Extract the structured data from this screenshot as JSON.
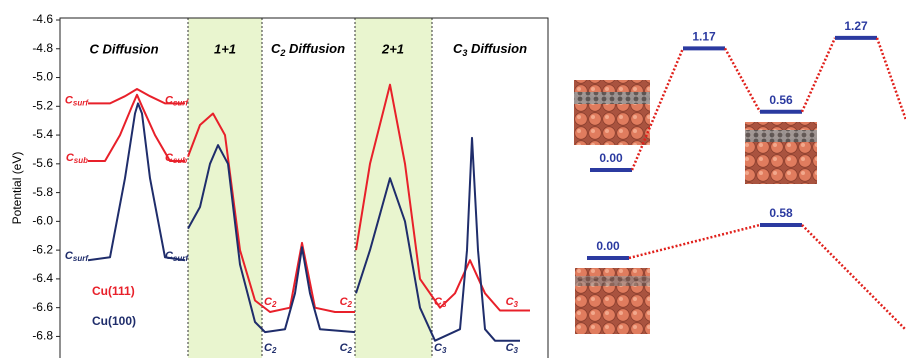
{
  "chart_data": [
    {
      "type": "line",
      "y_label": "Potential (eV)",
      "ylim": [
        -6.95,
        -4.6
      ],
      "yticks": [
        -4.6,
        -4.8,
        {
          "value": -5.0,
          "label": "-5.0"
        },
        -5.2,
        -5.4,
        -5.6,
        -5.8,
        {
          "value": -6.0,
          "label": "-6.0"
        },
        -6.2,
        -6.4,
        -6.6,
        -6.8
      ],
      "xlim": [
        0,
        488
      ],
      "sections": [
        {
          "text": "C Diffusion"
        },
        {
          "text": "1+1"
        },
        {
          "text": "C",
          "sub": "2",
          "tail": " Diffusion"
        },
        {
          "text": "2+1"
        },
        {
          "text": "C",
          "sub": "3",
          "tail": " Diffusion"
        }
      ],
      "series": [
        {
          "name": "Cu(111)",
          "color": "#e8202a",
          "x": [
            28,
            50,
            65,
            77,
            90,
            105,
            125,
            null,
            28,
            45,
            60,
            72,
            77,
            82,
            95,
            110,
            125,
            null,
            128,
            140,
            153,
            165,
            180,
            195,
            210,
            230,
            242,
            255,
            275,
            295,
            null,
            296,
            310,
            330,
            345,
            360,
            380,
            395,
            410,
            425,
            440,
            470
          ],
          "values": [
            -5.18,
            -5.18,
            -5.13,
            -5.08,
            -5.13,
            -5.18,
            -5.18,
            null,
            -5.58,
            -5.58,
            -5.4,
            -5.2,
            -5.12,
            -5.2,
            -5.4,
            -5.58,
            -5.58,
            null,
            -5.55,
            -5.33,
            -5.25,
            -5.4,
            -6.2,
            -6.55,
            -6.63,
            -6.6,
            -6.15,
            -6.6,
            -6.63,
            -6.63,
            null,
            -6.2,
            -5.6,
            -5.05,
            -5.6,
            -6.4,
            -6.6,
            -6.5,
            -6.27,
            -6.5,
            -6.62,
            -6.62
          ]
        },
        {
          "name": "Cu(100)",
          "color": "#1f2d6b",
          "x": [
            28,
            50,
            65,
            75,
            78,
            82,
            90,
            105,
            125,
            null,
            128,
            140,
            150,
            158,
            168,
            180,
            195,
            205,
            225,
            235,
            242,
            250,
            260,
            295,
            null,
            296,
            310,
            330,
            345,
            360,
            375,
            400,
            407,
            412,
            418,
            425,
            435,
            460
          ],
          "values": [
            -6.27,
            -6.25,
            -5.7,
            -5.25,
            -5.18,
            -5.25,
            -5.7,
            -6.25,
            -6.27,
            null,
            -6.05,
            -5.9,
            -5.6,
            -5.47,
            -5.6,
            -6.3,
            -6.7,
            -6.77,
            -6.75,
            -6.5,
            -6.18,
            -6.5,
            -6.75,
            -6.77,
            null,
            -6.5,
            -6.2,
            -5.7,
            -6.0,
            -6.6,
            -6.83,
            -6.75,
            -6.2,
            -5.42,
            -6.2,
            -6.75,
            -6.83,
            -6.83
          ]
        }
      ],
      "annotations": [
        {
          "text": "C",
          "sub": "surf"
        },
        {
          "text": "C",
          "sub": "surf"
        },
        {
          "text": "C",
          "sub": "sub"
        },
        {
          "text": "C",
          "sub": "sub"
        },
        {
          "text": "C",
          "sub": "surf"
        },
        {
          "text": "C",
          "sub": "surf"
        },
        {
          "text": "C",
          "sub": "2"
        },
        {
          "text": "C",
          "sub": "2"
        },
        {
          "text": "C",
          "sub": "2"
        },
        {
          "text": "C",
          "sub": "2"
        },
        {
          "text": "C",
          "sub": "3"
        },
        {
          "text": "C",
          "sub": "3"
        },
        {
          "text": "C",
          "sub": "3"
        },
        {
          "text": "C",
          "sub": "3"
        }
      ]
    },
    {
      "type": "energy_levels",
      "level_color": "#2b3aa0",
      "link_color": "#e0201b",
      "pathways": [
        {
          "values": [
            0,
            1.17,
            0.56,
            1.27
          ],
          "value_labels": [
            "0.00",
            "1.17",
            "0.56",
            "1.27"
          ]
        },
        {
          "values": [
            0,
            0.58
          ],
          "value_labels": [
            "0.00",
            "0.58"
          ]
        }
      ]
    }
  ]
}
